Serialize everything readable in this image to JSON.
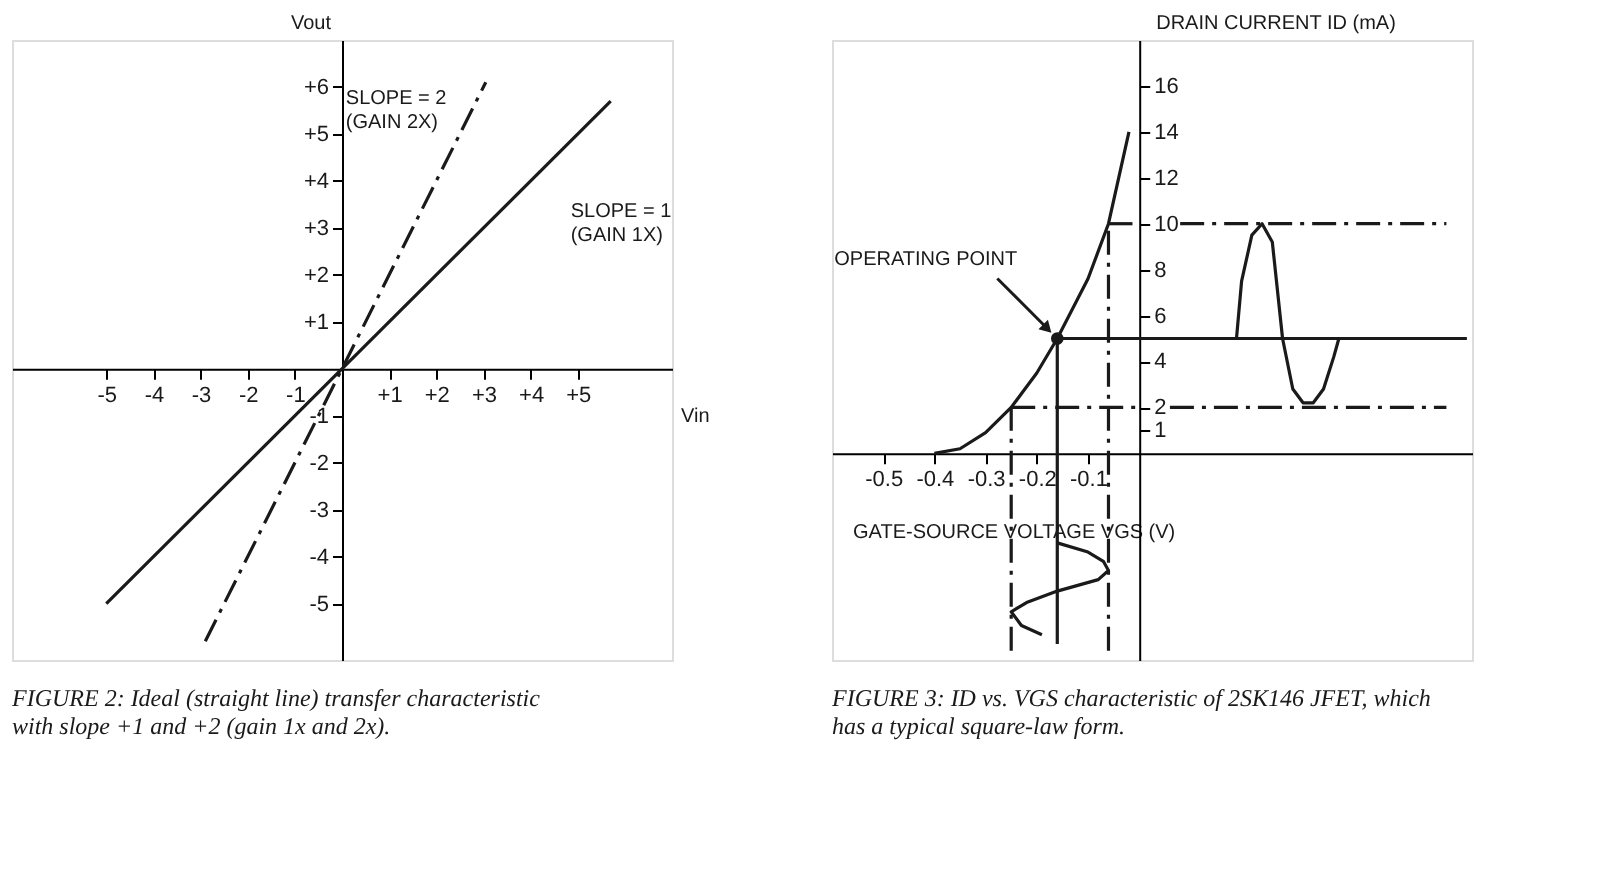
{
  "chart_data": [
    {
      "type": "line",
      "title": "FIGURE 2: Ideal (straight line) transfer characteristic with slope +1 and +2 (gain 1x and 2x).",
      "xlabel": "Vin",
      "ylabel": "Vout",
      "xlim": [
        -7,
        7
      ],
      "ylim": [
        -6.2,
        7
      ],
      "xticks": [
        -5,
        -4,
        -3,
        -2,
        -1,
        {
          "value": 1,
          "label": "+1"
        },
        {
          "value": 2,
          "label": "+2"
        },
        {
          "value": 3,
          "label": "+3"
        },
        {
          "value": 4,
          "label": "+4"
        },
        {
          "value": 5,
          "label": "+5"
        }
      ],
      "yticks": [
        -5,
        -4,
        -3,
        -2,
        -1,
        {
          "value": 1,
          "label": "+1"
        },
        {
          "value": 2,
          "label": "+2"
        },
        {
          "value": 3,
          "label": "+3"
        },
        {
          "value": 4,
          "label": "+4"
        },
        {
          "value": 5,
          "label": "+5"
        },
        {
          "value": 6,
          "label": "+6"
        }
      ],
      "series": [
        {
          "name": "SLOPE = 2\n(GAIN 2X)",
          "color": "#1a1a1a",
          "line_style": "dashed",
          "x": [
            -2.9,
            3.05
          ],
          "values": [
            -5.8,
            6.1
          ]
        },
        {
          "name": "SLOPE = 1\n(GAIN 1X)",
          "color": "#1a1a1a",
          "line_style": "solid",
          "x": [
            -5,
            5.7
          ],
          "values": [
            -5,
            5.7
          ]
        }
      ],
      "grid": false
    },
    {
      "type": "line",
      "title": "FIGURE 3: ID vs. VGS characteristic of 2SK146 JFET, which has a typical square-law form.",
      "xlabel": "GATE-SOURCE VOLTAGE VGS (V)",
      "ylabel": "DRAIN CURRENT ID (mA)",
      "xlim": [
        -0.6,
        0.65
      ],
      "ylim": [
        -9,
        18
      ],
      "xticks": [
        -0.5,
        -0.4,
        -0.3,
        -0.2,
        -0.1
      ],
      "yticks": [
        1,
        2,
        4,
        6,
        8,
        10,
        12,
        14,
        16
      ],
      "annotations": [
        {
          "text": "OPERATING POINT",
          "x": -0.16,
          "y": 5
        }
      ],
      "series": [
        {
          "color": "#1a1a1a",
          "line_style": "solid",
          "x": [
            -0.4,
            -0.35,
            -0.3,
            -0.25,
            -0.2,
            -0.16,
            -0.1,
            -0.06,
            -0.02
          ],
          "values": [
            0,
            0.2,
            0.9,
            2,
            3.5,
            5,
            7.6,
            10,
            14
          ]
        },
        {
          "color": "#1a1a1a",
          "line_style": "solid",
          "x": [
            -0.16,
            0.64
          ],
          "values": [
            5,
            5
          ]
        },
        {
          "color": "#1a1a1a",
          "line_style": "solid",
          "x": [
            -0.16,
            -0.16
          ],
          "values": [
            -8.3,
            5
          ]
        },
        {
          "color": "#1a1a1a",
          "line_style": "dashed",
          "x": [
            -0.06,
            -0.005
          ],
          "values": [
            10,
            10
          ]
        },
        {
          "color": "#1a1a1a",
          "line_style": "dashed",
          "x": [
            0.08,
            0.6
          ],
          "values": [
            10,
            10
          ]
        },
        {
          "color": "#1a1a1a",
          "line_style": "dashed",
          "x": [
            -0.25,
            -0.005
          ],
          "values": [
            2,
            2
          ]
        },
        {
          "color": "#1a1a1a",
          "line_style": "dashed",
          "x": [
            0.06,
            0.6
          ],
          "values": [
            2,
            2
          ]
        },
        {
          "color": "#1a1a1a",
          "line_style": "dashed",
          "x": [
            -0.25,
            -0.25
          ],
          "values": [
            -8.6,
            2
          ]
        },
        {
          "color": "#1a1a1a",
          "line_style": "dashed",
          "x": [
            -0.06,
            -0.06
          ],
          "values": [
            -8.6,
            10
          ]
        },
        {
          "color": "#1a1a1a",
          "line_style": "solid",
          "x": [
            0.19,
            0.2,
            0.22,
            0.24,
            0.26,
            0.28,
            0.3,
            0.32,
            0.34,
            0.36,
            0.38,
            0.39
          ],
          "values": [
            5,
            7.5,
            9.5,
            10,
            9.2,
            5,
            2.8,
            2.2,
            2.2,
            2.8,
            4.2,
            5
          ]
        },
        {
          "color": "#1a1a1a",
          "line_style": "solid",
          "x": [
            -0.16,
            -0.1,
            -0.07,
            -0.06,
            -0.08,
            -0.16,
            -0.22,
            -0.25,
            -0.23,
            -0.19
          ],
          "values": [
            -3.9,
            -4.3,
            -4.7,
            -5.1,
            -5.5,
            -6.0,
            -6.5,
            -6.9,
            -7.5,
            -7.9
          ]
        },
        {
          "type": "scatter",
          "marker": "circle",
          "color": "#1a1a1a",
          "x": [
            -0.16
          ],
          "values": [
            5
          ]
        }
      ],
      "grid": false
    }
  ]
}
